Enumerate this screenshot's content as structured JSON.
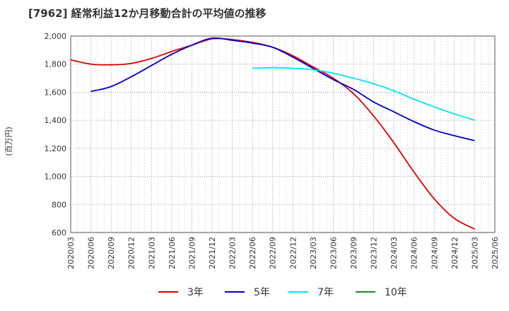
{
  "chart_data": {
    "type": "line",
    "title": "[7962]  経常利益12か月移動合計の平均値の推移",
    "ylabel": "(百万円)",
    "xlabel": "",
    "ylim": [
      600,
      2000
    ],
    "yticks": [
      600,
      800,
      1000,
      1200,
      1400,
      1600,
      1800,
      2000
    ],
    "ytick_labels": [
      "600",
      "800",
      "1,000",
      "1,200",
      "1,400",
      "1,600",
      "1,800",
      "2,000"
    ],
    "x_categories": [
      "2020/03",
      "2020/06",
      "2020/09",
      "2020/12",
      "2021/03",
      "2021/06",
      "2021/09",
      "2021/12",
      "2022/03",
      "2022/06",
      "2022/09",
      "2022/12",
      "2023/03",
      "2023/06",
      "2023/09",
      "2023/12",
      "2024/03",
      "2024/06",
      "2024/09",
      "2024/12",
      "2025/03",
      "2025/06"
    ],
    "grid": true,
    "legend_position": "bottom",
    "series": [
      {
        "name": "3年",
        "color": "#dd0000",
        "values": [
          1830,
          1800,
          1795,
          1805,
          1840,
          1890,
          1935,
          1980,
          1975,
          1955,
          1920,
          1860,
          1780,
          1700,
          1590,
          1430,
          1240,
          1030,
          840,
          700,
          625,
          null
        ]
      },
      {
        "name": "5年",
        "color": "#0000cc",
        "values": [
          null,
          1605,
          1640,
          1710,
          1790,
          1870,
          1935,
          1985,
          1970,
          1950,
          1920,
          1850,
          1770,
          1690,
          1620,
          1530,
          1460,
          1390,
          1330,
          1290,
          1255,
          null
        ]
      },
      {
        "name": "7年",
        "color": "#00e5ee",
        "values": [
          null,
          null,
          null,
          null,
          null,
          null,
          null,
          null,
          null,
          1770,
          1775,
          1770,
          1760,
          1735,
          1700,
          1660,
          1610,
          1550,
          1495,
          1445,
          1400,
          null
        ]
      },
      {
        "name": "10年",
        "color": "#228b22",
        "values": [
          null,
          null,
          null,
          null,
          null,
          null,
          null,
          null,
          null,
          null,
          null,
          null,
          null,
          null,
          null,
          null,
          null,
          null,
          null,
          null,
          null,
          null
        ]
      }
    ]
  }
}
